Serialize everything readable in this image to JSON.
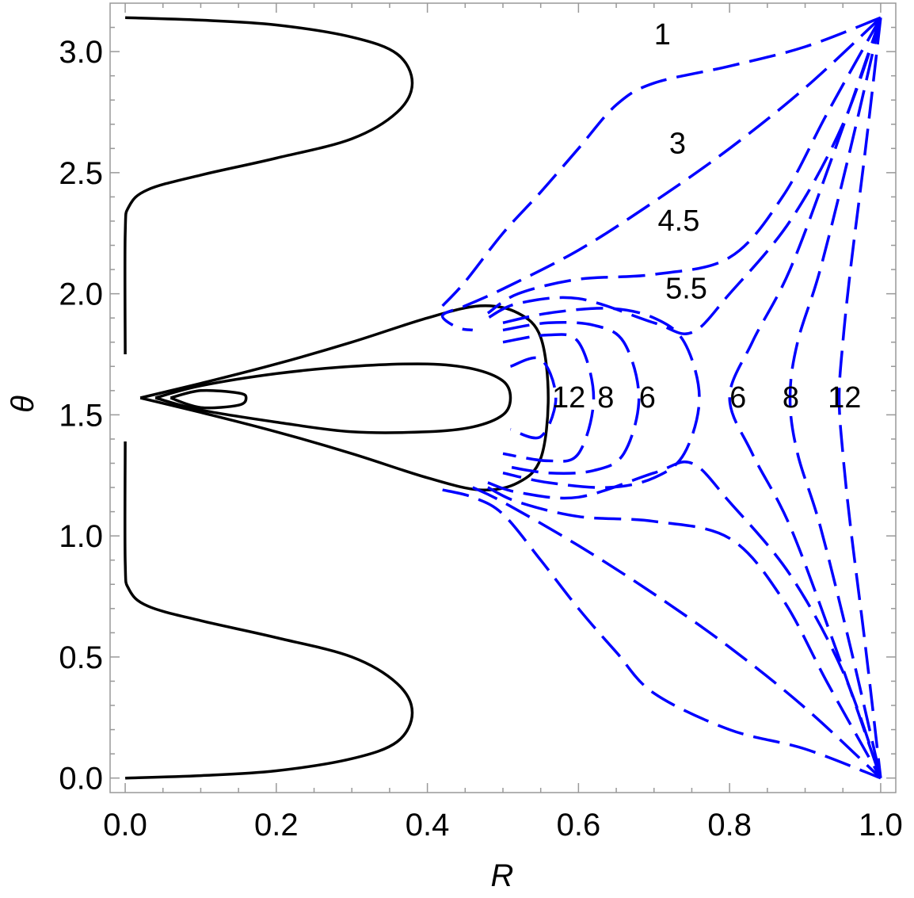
{
  "chart_data": {
    "type": "line",
    "title": "",
    "xlabel": "R",
    "ylabel": "θ",
    "xlim": [
      -0.02,
      1.02
    ],
    "ylim": [
      -0.06,
      3.2
    ],
    "x_ticks": [
      {
        "value": 0.0,
        "label": "0.0"
      },
      {
        "value": 0.2,
        "label": "0.2"
      },
      {
        "value": 0.4,
        "label": "0.4"
      },
      {
        "value": 0.6,
        "label": "0.6"
      },
      {
        "value": 0.8,
        "label": "0.8"
      },
      {
        "value": 1.0,
        "label": "1.0"
      }
    ],
    "y_ticks": [
      {
        "value": 0.0,
        "label": "0.0"
      },
      {
        "value": 0.5,
        "label": "0.5"
      },
      {
        "value": 1.0,
        "label": "1.0"
      },
      {
        "value": 1.5,
        "label": "1.5"
      },
      {
        "value": 2.0,
        "label": "2.0"
      },
      {
        "value": 2.5,
        "label": "2.5"
      },
      {
        "value": 3.0,
        "label": "3.0"
      }
    ],
    "grid": false,
    "colors": {
      "solid": "#000000",
      "dashed": "#0000ff"
    },
    "solid_curves": [
      {
        "points": [
          [
            0,
            3.14
          ],
          [
            0.1,
            3.13
          ],
          [
            0.2,
            3.11
          ],
          [
            0.3,
            3.06
          ],
          [
            0.36,
            2.99
          ],
          [
            0.38,
            2.87
          ],
          [
            0.36,
            2.75
          ],
          [
            0.3,
            2.64
          ],
          [
            0.2,
            2.56
          ],
          [
            0.1,
            2.49
          ],
          [
            0.03,
            2.43
          ],
          [
            0.005,
            2.36
          ],
          [
            0,
            2.25
          ],
          [
            0,
            1.75
          ]
        ]
      },
      {
        "points": [
          [
            0,
            0
          ],
          [
            0.1,
            0.01
          ],
          [
            0.2,
            0.03
          ],
          [
            0.3,
            0.08
          ],
          [
            0.36,
            0.15
          ],
          [
            0.38,
            0.27
          ],
          [
            0.36,
            0.39
          ],
          [
            0.3,
            0.5
          ],
          [
            0.2,
            0.58
          ],
          [
            0.1,
            0.65
          ],
          [
            0.03,
            0.71
          ],
          [
            0.005,
            0.78
          ],
          [
            0,
            0.89
          ],
          [
            0,
            1.39
          ]
        ]
      },
      {
        "points": [
          [
            0.02,
            1.57
          ],
          [
            0.1,
            1.63
          ],
          [
            0.2,
            1.71
          ],
          [
            0.3,
            1.8
          ],
          [
            0.4,
            1.9
          ],
          [
            0.47,
            1.95
          ],
          [
            0.52,
            1.92
          ],
          [
            0.55,
            1.82
          ],
          [
            0.56,
            1.57
          ],
          [
            0.55,
            1.32
          ],
          [
            0.52,
            1.22
          ],
          [
            0.47,
            1.19
          ],
          [
            0.4,
            1.24
          ],
          [
            0.3,
            1.34
          ],
          [
            0.2,
            1.43
          ],
          [
            0.1,
            1.51
          ],
          [
            0.02,
            1.57
          ]
        ]
      },
      {
        "points": [
          [
            0.04,
            1.57
          ],
          [
            0.1,
            1.62
          ],
          [
            0.2,
            1.67
          ],
          [
            0.3,
            1.7
          ],
          [
            0.4,
            1.71
          ],
          [
            0.46,
            1.69
          ],
          [
            0.5,
            1.64
          ],
          [
            0.51,
            1.57
          ],
          [
            0.5,
            1.5
          ],
          [
            0.46,
            1.45
          ],
          [
            0.4,
            1.43
          ],
          [
            0.3,
            1.43
          ],
          [
            0.2,
            1.47
          ],
          [
            0.1,
            1.52
          ],
          [
            0.04,
            1.57
          ]
        ]
      },
      {
        "points": [
          [
            0.06,
            1.57
          ],
          [
            0.1,
            1.6
          ],
          [
            0.15,
            1.59
          ],
          [
            0.16,
            1.57
          ],
          [
            0.15,
            1.54
          ],
          [
            0.1,
            1.53
          ],
          [
            0.06,
            1.57
          ]
        ]
      }
    ],
    "dashed_curves": [
      {
        "points": [
          [
            1,
            3.14
          ],
          [
            0.9,
            3.02
          ],
          [
            0.8,
            2.94
          ],
          [
            0.7,
            2.87
          ],
          [
            0.65,
            2.78
          ],
          [
            0.6,
            2.6
          ],
          [
            0.55,
            2.42
          ],
          [
            0.5,
            2.25
          ],
          [
            0.45,
            2.05
          ],
          [
            0.42,
            1.95
          ]
        ]
      },
      {
        "points": [
          [
            1,
            3.14
          ],
          [
            0.9,
            2.85
          ],
          [
            0.8,
            2.6
          ],
          [
            0.7,
            2.38
          ],
          [
            0.6,
            2.18
          ],
          [
            0.5,
            2.02
          ],
          [
            0.45,
            1.95
          ],
          [
            0.42,
            1.91
          ],
          [
            0.44,
            1.86
          ],
          [
            0.46,
            1.85
          ]
        ]
      },
      {
        "points": [
          [
            1,
            3.14
          ],
          [
            0.93,
            2.75
          ],
          [
            0.87,
            2.4
          ],
          [
            0.8,
            2.15
          ],
          [
            0.7,
            2.08
          ],
          [
            0.6,
            2.06
          ],
          [
            0.52,
            2.0
          ],
          [
            0.48,
            1.92
          ]
        ]
      },
      {
        "points": [
          [
            1,
            3.14
          ],
          [
            0.95,
            2.7
          ],
          [
            0.88,
            2.3
          ],
          [
            0.8,
            2.0
          ],
          [
            0.75,
            1.84
          ],
          [
            0.7,
            1.88
          ],
          [
            0.6,
            1.98
          ],
          [
            0.52,
            1.96
          ],
          [
            0.48,
            1.9
          ]
        ]
      },
      {
        "points": [
          [
            1,
            3.14
          ],
          [
            0.94,
            2.6
          ],
          [
            0.88,
            2.1
          ],
          [
            0.83,
            1.8
          ],
          [
            0.8,
            1.57
          ],
          [
            0.83,
            1.34
          ],
          [
            0.88,
            1.04
          ],
          [
            0.94,
            0.54
          ],
          [
            1,
            0
          ]
        ]
      },
      {
        "points": [
          [
            1,
            3.14
          ],
          [
            0.96,
            2.6
          ],
          [
            0.92,
            2.1
          ],
          [
            0.89,
            1.8
          ],
          [
            0.88,
            1.57
          ],
          [
            0.89,
            1.34
          ],
          [
            0.92,
            1.04
          ],
          [
            0.96,
            0.54
          ],
          [
            1,
            0
          ]
        ]
      },
      {
        "points": [
          [
            1,
            3.14
          ],
          [
            0.98,
            2.6
          ],
          [
            0.96,
            2.1
          ],
          [
            0.95,
            1.8
          ],
          [
            0.945,
            1.57
          ],
          [
            0.95,
            1.34
          ],
          [
            0.96,
            1.04
          ],
          [
            0.98,
            0.54
          ],
          [
            1,
            0
          ]
        ]
      },
      {
        "points": [
          [
            0.5,
            1.88
          ],
          [
            0.56,
            1.92
          ],
          [
            0.64,
            1.94
          ],
          [
            0.7,
            1.9
          ],
          [
            0.74,
            1.8
          ],
          [
            0.76,
            1.57
          ],
          [
            0.74,
            1.34
          ],
          [
            0.7,
            1.24
          ],
          [
            0.64,
            1.2
          ],
          [
            0.56,
            1.22
          ],
          [
            0.5,
            1.26
          ]
        ]
      },
      {
        "points": [
          [
            0.5,
            1.85
          ],
          [
            0.56,
            1.88
          ],
          [
            0.62,
            1.87
          ],
          [
            0.66,
            1.8
          ],
          [
            0.68,
            1.57
          ],
          [
            0.66,
            1.34
          ],
          [
            0.62,
            1.27
          ],
          [
            0.56,
            1.26
          ],
          [
            0.5,
            1.29
          ]
        ]
      },
      {
        "points": [
          [
            0.5,
            1.8
          ],
          [
            0.56,
            1.83
          ],
          [
            0.6,
            1.8
          ],
          [
            0.62,
            1.57
          ],
          [
            0.6,
            1.34
          ],
          [
            0.56,
            1.31
          ],
          [
            0.5,
            1.34
          ]
        ]
      },
      {
        "points": [
          [
            0.51,
            1.7
          ],
          [
            0.55,
            1.73
          ],
          [
            0.57,
            1.57
          ],
          [
            0.55,
            1.41
          ],
          [
            0.51,
            1.44
          ]
        ]
      },
      {
        "points": [
          [
            0.48,
            1.22
          ],
          [
            0.52,
            1.18
          ],
          [
            0.6,
            1.16
          ],
          [
            0.7,
            1.26
          ],
          [
            0.75,
            1.3
          ],
          [
            0.8,
            1.14
          ],
          [
            0.88,
            0.84
          ],
          [
            0.95,
            0.44
          ],
          [
            1,
            0
          ]
        ]
      },
      {
        "points": [
          [
            0.48,
            1.2
          ],
          [
            0.52,
            1.14
          ],
          [
            0.6,
            1.08
          ],
          [
            0.7,
            1.06
          ],
          [
            0.8,
            0.99
          ],
          [
            0.87,
            0.74
          ],
          [
            0.93,
            0.39
          ],
          [
            1,
            0
          ]
        ]
      },
      {
        "points": [
          [
            0.46,
            1.2
          ],
          [
            0.5,
            1.14
          ],
          [
            0.6,
            0.96
          ],
          [
            0.7,
            0.76
          ],
          [
            0.8,
            0.54
          ],
          [
            0.9,
            0.29
          ],
          [
            1,
            0
          ]
        ]
      },
      {
        "points": [
          [
            0.42,
            1.19
          ],
          [
            0.46,
            1.16
          ],
          [
            0.5,
            1.09
          ],
          [
            0.55,
            0.9
          ],
          [
            0.6,
            0.7
          ],
          [
            0.65,
            0.52
          ],
          [
            0.7,
            0.35
          ],
          [
            0.8,
            0.2
          ],
          [
            0.9,
            0.12
          ],
          [
            1,
            0
          ]
        ]
      }
    ],
    "labels": [
      {
        "text": "1",
        "x": 0.7,
        "y": 3.03
      },
      {
        "text": "3",
        "x": 0.72,
        "y": 2.58
      },
      {
        "text": "4.5",
        "x": 0.705,
        "y": 2.26
      },
      {
        "text": "5.5",
        "x": 0.715,
        "y": 1.98
      },
      {
        "text": "12",
        "x": 0.565,
        "y": 1.53
      },
      {
        "text": "8",
        "x": 0.625,
        "y": 1.53
      },
      {
        "text": "6",
        "x": 0.68,
        "y": 1.53
      },
      {
        "text": "6",
        "x": 0.8,
        "y": 1.53
      },
      {
        "text": "8",
        "x": 0.87,
        "y": 1.53
      },
      {
        "text": "12",
        "x": 0.93,
        "y": 1.53
      }
    ]
  }
}
